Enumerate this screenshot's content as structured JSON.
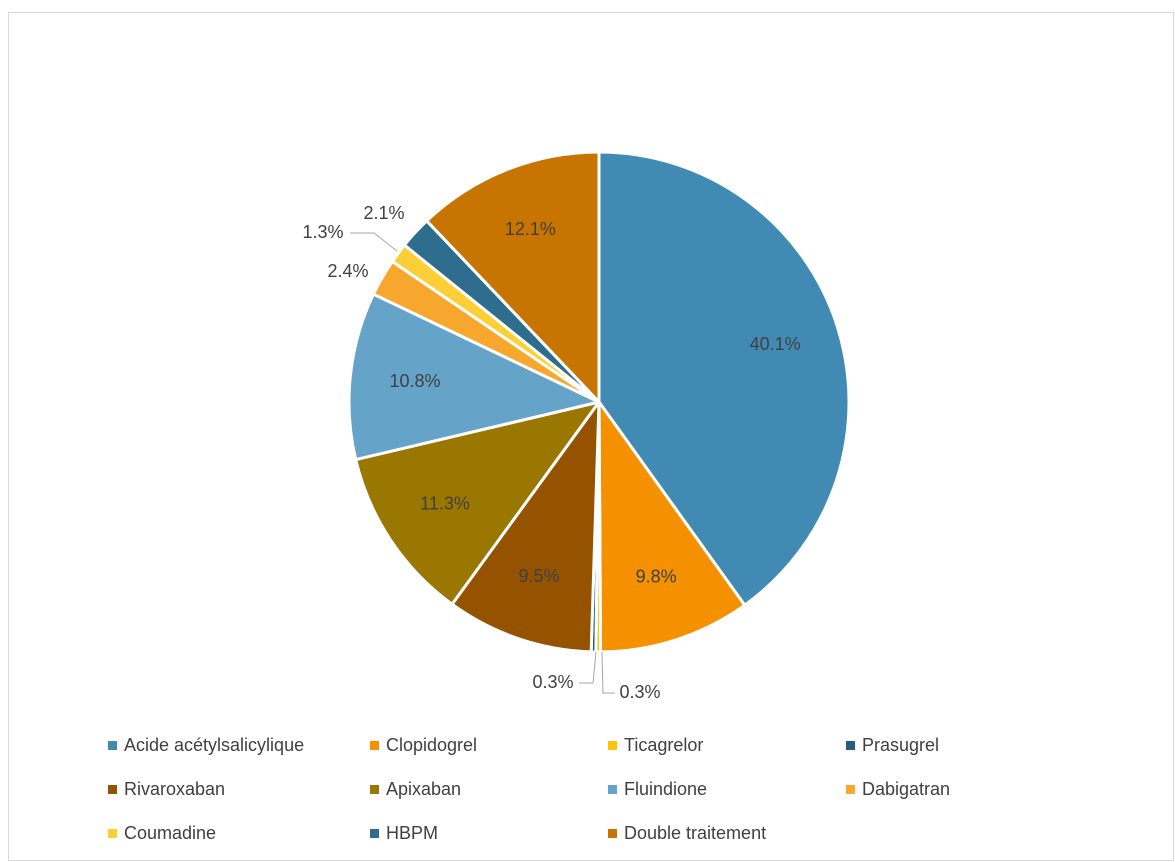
{
  "chart_data": {
    "type": "pie",
    "title": "",
    "start_angle_deg": 0,
    "direction": "clockwise",
    "legend_position": "bottom",
    "slices": [
      {
        "name": "Acide acétylsalicylique",
        "value": 40.1,
        "label": "40.1%",
        "color": "#418AB3"
      },
      {
        "name": "Clopidogrel",
        "value": 9.8,
        "label": "9.8%",
        "color": "#F59100"
      },
      {
        "name": "Ticagrelor",
        "value": 0.3,
        "label": "0.3%",
        "color": "#FEC306"
      },
      {
        "name": "Prasugrel",
        "value": 0.3,
        "label": "0.3%",
        "color": "#255D80"
      },
      {
        "name": "Rivaroxaban",
        "value": 9.5,
        "label": "9.5%",
        "color": "#955300"
      },
      {
        "name": "Apixaban",
        "value": 11.3,
        "label": "11.3%",
        "color": "#9A7700"
      },
      {
        "name": "Fluindione",
        "value": 10.8,
        "label": "10.8%",
        "color": "#66A3C9"
      },
      {
        "name": "Dabigatran",
        "value": 2.4,
        "label": "2.4%",
        "color": "#F7A72E"
      },
      {
        "name": "Coumadine",
        "value": 1.3,
        "label": "1.3%",
        "color": "#FCCF36"
      },
      {
        "name": "HBPM",
        "value": 2.1,
        "label": "2.1%",
        "color": "#2F6D8F"
      },
      {
        "name": "Double traitement",
        "value": 12.1,
        "label": "12.1%",
        "color": "#C77500"
      }
    ]
  }
}
